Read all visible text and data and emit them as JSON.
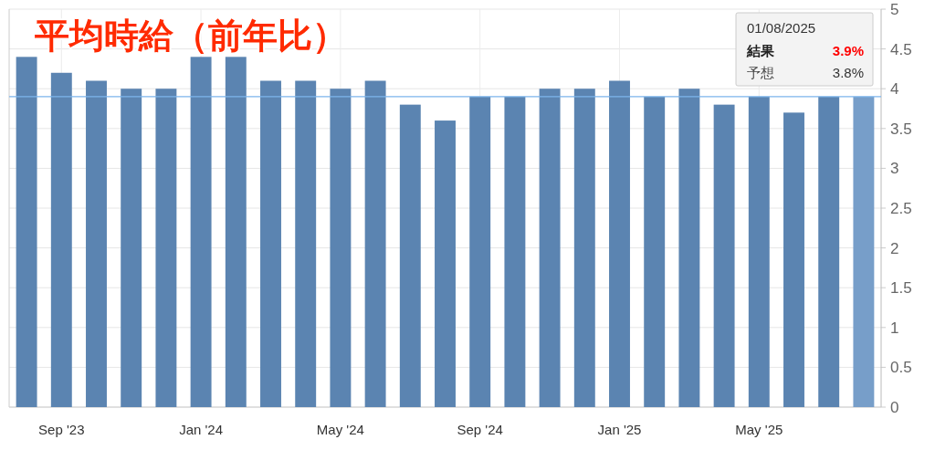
{
  "chart_data": {
    "type": "bar",
    "title": "平均時給（前年比）",
    "categories": [
      null,
      "Sep '23",
      null,
      null,
      null,
      "Jan '24",
      null,
      null,
      null,
      "May '24",
      null,
      null,
      null,
      "Sep '24",
      null,
      null,
      null,
      "Jan '25",
      null,
      null,
      null,
      "May '25",
      null,
      null,
      null
    ],
    "values": [
      4.4,
      4.2,
      4.1,
      4.0,
      4.0,
      4.4,
      4.4,
      4.1,
      4.1,
      4.0,
      4.1,
      3.8,
      3.6,
      3.9,
      3.9,
      4.0,
      4.0,
      4.1,
      3.9,
      4.0,
      3.8,
      3.9,
      3.7,
      3.9,
      3.9
    ],
    "colors": [
      "#5b84b1",
      "#5b84b1",
      "#5b84b1",
      "#5b84b1",
      "#5b84b1",
      "#5b84b1",
      "#5b84b1",
      "#5b84b1",
      "#5b84b1",
      "#5b84b1",
      "#5b84b1",
      "#5b84b1",
      "#5b84b1",
      "#5b84b1",
      "#5b84b1",
      "#5b84b1",
      "#5b84b1",
      "#5b84b1",
      "#5b84b1",
      "#5b84b1",
      "#5b84b1",
      "#5b84b1",
      "#5b84b1",
      "#5b84b1",
      "#779ec9"
    ],
    "ylim": [
      0,
      5
    ],
    "yticks": [
      0,
      0.5,
      1,
      1.5,
      2,
      2.5,
      3,
      3.5,
      4,
      4.5,
      5
    ],
    "grid": true,
    "ref_lines": [
      {
        "axis": "y",
        "value": 3.9,
        "color": "#7cb5ec"
      }
    ],
    "annotations": [
      "01/08/2025",
      "結果",
      "3.9%",
      "予想",
      "3.8%"
    ]
  }
}
